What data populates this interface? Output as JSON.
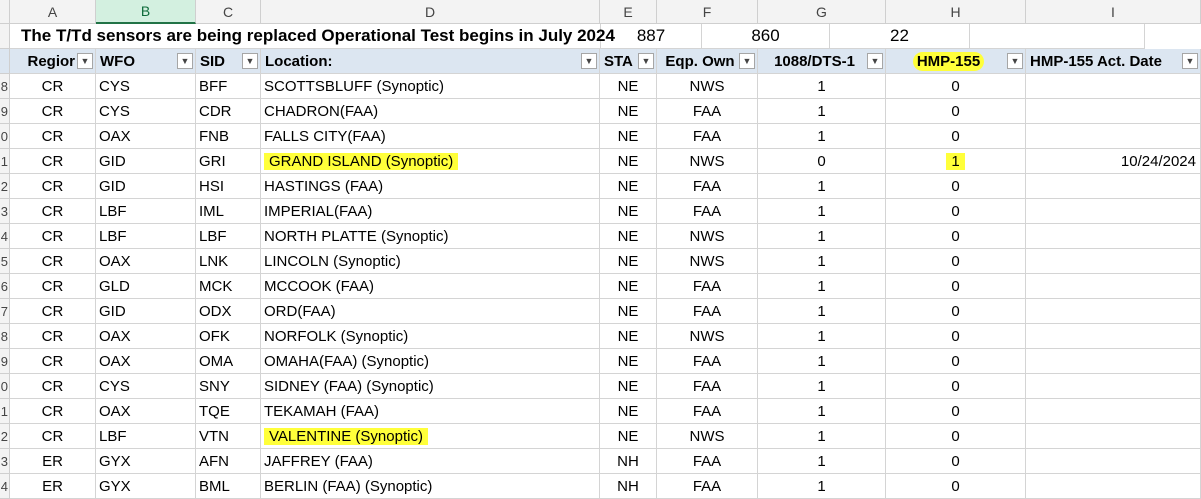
{
  "column_letters": [
    "A",
    "B",
    "C",
    "D",
    "E",
    "F",
    "G",
    "H",
    "I"
  ],
  "title_row": {
    "title": "The T/Td sensors are being replaced Operational Test begins in July 2024",
    "f_value": "887",
    "g_value": "860",
    "h_value": "22"
  },
  "headers": [
    "Regior",
    "WFO",
    "SID",
    "Location:",
    "STA",
    "Eqp. Own",
    "1088/DTS-1",
    "HMP-155",
    "HMP-155 Act. Date"
  ],
  "highlight_color": "#ffff3a",
  "rows": [
    {
      "num": "8",
      "region": "CR",
      "wfo": "CYS",
      "sid": "BFF",
      "location": "SCOTTSBLUFF (Synoptic)",
      "sta": "NE",
      "own": "NWS",
      "dts": "1",
      "hmp": "0",
      "date": ""
    },
    {
      "num": "9",
      "region": "CR",
      "wfo": "CYS",
      "sid": "CDR",
      "location": "CHADRON(FAA)",
      "sta": "NE",
      "own": "FAA",
      "dts": "1",
      "hmp": "0",
      "date": ""
    },
    {
      "num": "0",
      "region": "CR",
      "wfo": "OAX",
      "sid": "FNB",
      "location": "FALLS CITY(FAA)",
      "sta": "NE",
      "own": "FAA",
      "dts": "1",
      "hmp": "0",
      "date": ""
    },
    {
      "num": "1",
      "region": "CR",
      "wfo": "GID",
      "sid": "GRI",
      "location": "GRAND ISLAND (Synoptic)",
      "sta": "NE",
      "own": "NWS",
      "dts": "0",
      "hmp": "1",
      "date": "10/24/2024"
    },
    {
      "num": "2",
      "region": "CR",
      "wfo": "GID",
      "sid": "HSI",
      "location": "HASTINGS (FAA)",
      "sta": "NE",
      "own": "FAA",
      "dts": "1",
      "hmp": "0",
      "date": ""
    },
    {
      "num": "3",
      "region": "CR",
      "wfo": "LBF",
      "sid": "IML",
      "location": "IMPERIAL(FAA)",
      "sta": "NE",
      "own": "FAA",
      "dts": "1",
      "hmp": "0",
      "date": ""
    },
    {
      "num": "4",
      "region": "CR",
      "wfo": "LBF",
      "sid": "LBF",
      "location": "NORTH PLATTE (Synoptic)",
      "sta": "NE",
      "own": "NWS",
      "dts": "1",
      "hmp": "0",
      "date": ""
    },
    {
      "num": "5",
      "region": "CR",
      "wfo": "OAX",
      "sid": "LNK",
      "location": "LINCOLN (Synoptic)",
      "sta": "NE",
      "own": "NWS",
      "dts": "1",
      "hmp": "0",
      "date": ""
    },
    {
      "num": "6",
      "region": "CR",
      "wfo": "GLD",
      "sid": "MCK",
      "location": "MCCOOK (FAA)",
      "sta": "NE",
      "own": "FAA",
      "dts": "1",
      "hmp": "0",
      "date": ""
    },
    {
      "num": "7",
      "region": "CR",
      "wfo": "GID",
      "sid": "ODX",
      "location": "ORD(FAA)",
      "sta": "NE",
      "own": "FAA",
      "dts": "1",
      "hmp": "0",
      "date": ""
    },
    {
      "num": "8",
      "region": "CR",
      "wfo": "OAX",
      "sid": "OFK",
      "location": "NORFOLK (Synoptic)",
      "sta": "NE",
      "own": "NWS",
      "dts": "1",
      "hmp": "0",
      "date": ""
    },
    {
      "num": "9",
      "region": "CR",
      "wfo": "OAX",
      "sid": "OMA",
      "location": "OMAHA(FAA) (Synoptic)",
      "sta": "NE",
      "own": "FAA",
      "dts": "1",
      "hmp": "0",
      "date": ""
    },
    {
      "num": "0",
      "region": "CR",
      "wfo": "CYS",
      "sid": "SNY",
      "location": "SIDNEY (FAA) (Synoptic)",
      "sta": "NE",
      "own": "FAA",
      "dts": "1",
      "hmp": "0",
      "date": ""
    },
    {
      "num": "1",
      "region": "CR",
      "wfo": "OAX",
      "sid": "TQE",
      "location": "TEKAMAH (FAA)",
      "sta": "NE",
      "own": "FAA",
      "dts": "1",
      "hmp": "0",
      "date": ""
    },
    {
      "num": "2",
      "region": "CR",
      "wfo": "LBF",
      "sid": "VTN",
      "location": "VALENTINE (Synoptic)",
      "sta": "NE",
      "own": "NWS",
      "dts": "1",
      "hmp": "0",
      "date": ""
    },
    {
      "num": "3",
      "region": "ER",
      "wfo": "GYX",
      "sid": "AFN",
      "location": "JAFFREY (FAA)",
      "sta": "NH",
      "own": "FAA",
      "dts": "1",
      "hmp": "0",
      "date": ""
    },
    {
      "num": "4",
      "region": "ER",
      "wfo": "GYX",
      "sid": "BML",
      "location": "BERLIN (FAA) (Synoptic)",
      "sta": "NH",
      "own": "FAA",
      "dts": "1",
      "hmp": "0",
      "date": ""
    }
  ]
}
